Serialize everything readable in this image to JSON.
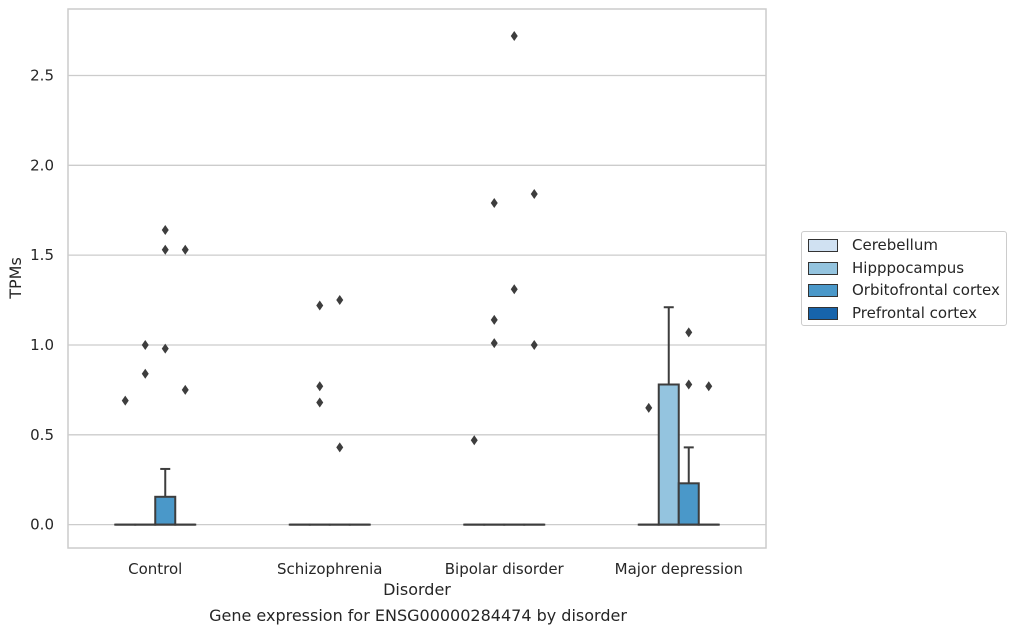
{
  "chart_data": {
    "type": "boxplot",
    "xlabel": "Disorder",
    "ylabel": "TPMs",
    "caption": "Gene expression for ENSG00000284474 by disorder",
    "ylim": [
      -0.13,
      2.87
    ],
    "yticks": [
      "0.0",
      "0.5",
      "1.0",
      "1.5",
      "2.0",
      "2.5"
    ],
    "grid": "y",
    "legend_position": "right",
    "categories": [
      "Control",
      "Schizophrenia",
      "Bipolar disorder",
      "Major depression"
    ],
    "series": [
      {
        "name": "Cerebellum",
        "color": "#d0e1f2"
      },
      {
        "name": "Hipppocampus",
        "color": "#94c4df"
      },
      {
        "name": "Orbitofrontal cortex",
        "color": "#4a98c9"
      },
      {
        "name": "Prefrontal cortex",
        "color": "#1764ab"
      }
    ],
    "boxes": [
      [
        {
          "q1": 0,
          "median": 0,
          "q3": 0,
          "whisker_low": 0,
          "whisker_high": 0,
          "outliers": [
            0.69
          ]
        },
        {
          "q1": 0,
          "median": 0,
          "q3": 0,
          "whisker_low": 0,
          "whisker_high": 0,
          "outliers": [
            0.84,
            1.0
          ]
        },
        {
          "q1": 0,
          "median": 0,
          "q3": 0.155,
          "whisker_low": 0,
          "whisker_high": 0.31,
          "outliers": [
            0.98,
            1.53,
            1.64
          ]
        },
        {
          "q1": 0,
          "median": 0,
          "q3": 0,
          "whisker_low": 0,
          "whisker_high": 0,
          "outliers": [
            0.75,
            1.53
          ]
        }
      ],
      [
        {
          "q1": 0,
          "median": 0,
          "q3": 0,
          "whisker_low": 0,
          "whisker_high": 0,
          "outliers": []
        },
        {
          "q1": 0,
          "median": 0,
          "q3": 0,
          "whisker_low": 0,
          "whisker_high": 0,
          "outliers": [
            0.68,
            0.77,
            1.22
          ]
        },
        {
          "q1": 0,
          "median": 0,
          "q3": 0,
          "whisker_low": 0,
          "whisker_high": 0,
          "outliers": [
            0.43,
            1.25
          ]
        },
        {
          "q1": 0,
          "median": 0,
          "q3": 0,
          "whisker_low": 0,
          "whisker_high": 0,
          "outliers": []
        }
      ],
      [
        {
          "q1": 0,
          "median": 0,
          "q3": 0,
          "whisker_low": 0,
          "whisker_high": 0,
          "outliers": [
            0.47
          ]
        },
        {
          "q1": 0,
          "median": 0,
          "q3": 0,
          "whisker_low": 0,
          "whisker_high": 0,
          "outliers": [
            1.01,
            1.14,
            1.79
          ]
        },
        {
          "q1": 0,
          "median": 0,
          "q3": 0,
          "whisker_low": 0,
          "whisker_high": 0,
          "outliers": [
            1.31,
            2.72
          ]
        },
        {
          "q1": 0,
          "median": 0,
          "q3": 0,
          "whisker_low": 0,
          "whisker_high": 0,
          "outliers": [
            1.0,
            1.84
          ]
        }
      ],
      [
        {
          "q1": 0,
          "median": 0,
          "q3": 0,
          "whisker_low": 0,
          "whisker_high": 0,
          "outliers": [
            0.65
          ]
        },
        {
          "q1": 0,
          "median": 0,
          "q3": 0.78,
          "whisker_low": 0,
          "whisker_high": 1.21,
          "outliers": []
        },
        {
          "q1": 0,
          "median": 0,
          "q3": 0.23,
          "whisker_low": 0,
          "whisker_high": 0.43,
          "outliers": [
            0.78,
            1.07
          ]
        },
        {
          "q1": 0,
          "median": 0,
          "q3": 0,
          "whisker_low": 0,
          "whisker_high": 0,
          "outliers": [
            0.77
          ]
        }
      ]
    ]
  }
}
